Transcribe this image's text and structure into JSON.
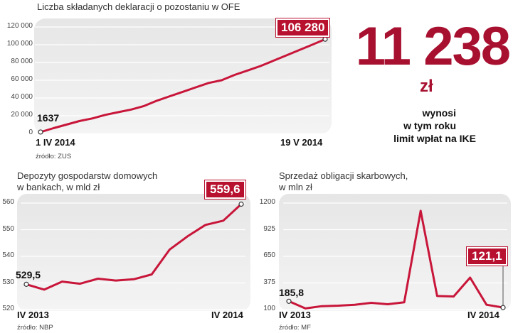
{
  "callout": {
    "value": "11 238",
    "unit": "zł",
    "line1": "wynosi",
    "line2": "w tym roku",
    "line3": "limit wpłat na IKE"
  },
  "chart_data": [
    {
      "type": "line",
      "title": "Liczba składanych deklaracji o pozostaniu w OFE",
      "source": "źródło: ZUS",
      "x_labels": [
        "1 IV 2014",
        "19 V 2014"
      ],
      "y_ticks": [
        "0",
        "20 000",
        "40 000",
        "60 000",
        "80 000",
        "100 000",
        "120 000"
      ],
      "ylim": [
        0,
        120000
      ],
      "start_label": "1637",
      "end_label": "106 280",
      "color": "#c8163a",
      "values": [
        1637,
        6000,
        10000,
        14000,
        17000,
        21000,
        24000,
        27000,
        31000,
        37000,
        42000,
        47000,
        52000,
        57000,
        60000,
        66000,
        71000,
        76000,
        82000,
        88000,
        94000,
        100000,
        106280
      ]
    },
    {
      "type": "line",
      "title_line1": "Depozyty gospodarstw domowych",
      "title_line2": "w bankach, w mld zł",
      "source": "źródło: NBP",
      "x_labels": [
        "IV 2013",
        "IV 2014"
      ],
      "y_ticks": [
        "520",
        "530",
        "540",
        "550",
        "560"
      ],
      "ylim": [
        520,
        560
      ],
      "start_label": "529,5",
      "end_label": "559,6",
      "color": "#c8163a",
      "values": [
        529.5,
        527.5,
        530.5,
        529.7,
        531.6,
        530.9,
        531.4,
        533.2,
        542.5,
        547.5,
        551.8,
        553.4,
        559.6
      ]
    },
    {
      "type": "line",
      "title_line1": "Sprzedaż obligacji skarbowych,",
      "title_line2": "w mln zł",
      "source": "źródło: MF",
      "x_labels": [
        "IV 2013",
        "IV 2014"
      ],
      "y_ticks": [
        "100",
        "375",
        "650",
        "925",
        "1200"
      ],
      "ylim": [
        100,
        1200
      ],
      "start_label": "185,8",
      "end_label": "121,1",
      "color": "#c8163a",
      "values": [
        185.8,
        112,
        135,
        140,
        150,
        170,
        155,
        175,
        1120,
        240,
        235,
        430,
        150,
        121.1
      ]
    }
  ]
}
